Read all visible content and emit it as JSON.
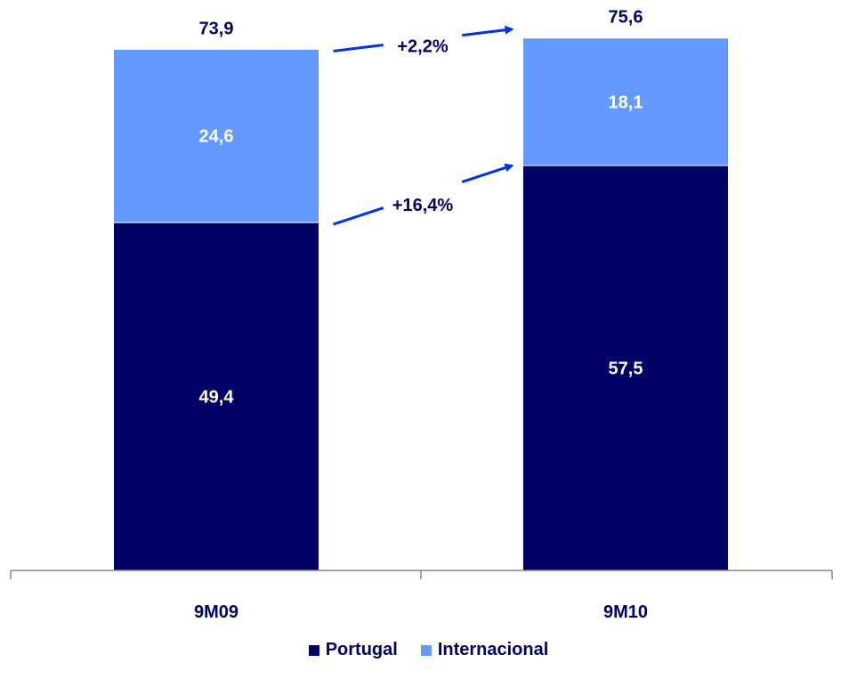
{
  "chart_data": {
    "type": "bar",
    "stacked": true,
    "categories": [
      "9M09",
      "9M10"
    ],
    "series": [
      {
        "name": "Portugal",
        "values": [
          49.4,
          57.5
        ],
        "labels": [
          "49,4",
          "57,5"
        ],
        "color": "#000066",
        "label_color": "#ffffff"
      },
      {
        "name": "Internacional",
        "values": [
          24.6,
          18.1
        ],
        "labels": [
          "24,6",
          "18,1"
        ],
        "color": "#6699ff",
        "label_color": "#ffffff"
      }
    ],
    "totals": [
      73.9,
      75.6
    ],
    "total_labels": [
      "73,9",
      "75,6"
    ],
    "annotations": [
      {
        "text": "+2,2%",
        "from": "9M09 total",
        "to": "9M10 total"
      },
      {
        "text": "+16,4%",
        "from": "9M09 Portugal",
        "to": "9M10 Portugal"
      }
    ],
    "ylim": [
      0,
      81
    ],
    "grid": false,
    "legend_position": "bottom",
    "arrow_color": "#0033ee"
  }
}
